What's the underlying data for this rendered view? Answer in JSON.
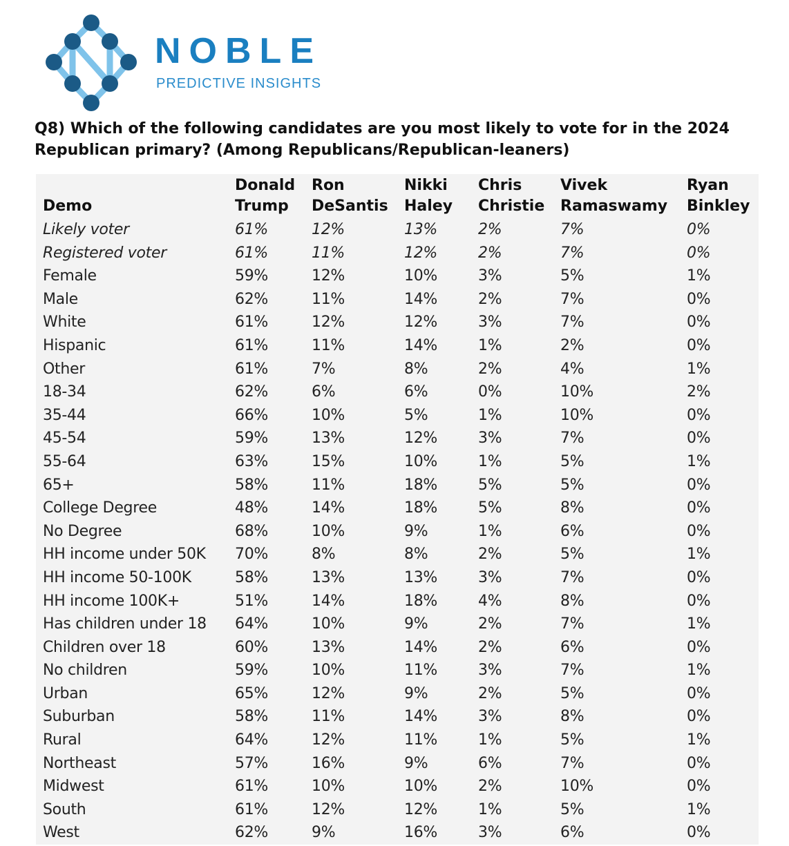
{
  "logo": {
    "brand": "NOBLE",
    "tagline": "PREDICTIVE INSIGHTS",
    "colors": {
      "node": "#1b5a86",
      "accent": "#1a7fc0",
      "line": "#7fc3ea"
    }
  },
  "question": "Q8) Which of the following candidates are you most likely to vote for in the 2024 Republican primary? (Among Republicans/Republican-leaners)",
  "table": {
    "headers": [
      {
        "line1": "",
        "line2": "Demo"
      },
      {
        "line1": "Donald",
        "line2": "Trump"
      },
      {
        "line1": "Ron",
        "line2": "DeSantis"
      },
      {
        "line1": "Nikki",
        "line2": "Haley"
      },
      {
        "line1": "Chris",
        "line2": "Christie"
      },
      {
        "line1": "Vivek",
        "line2": "Ramaswamy"
      },
      {
        "line1": "Ryan",
        "line2": "Binkley"
      }
    ],
    "rows": [
      {
        "italic": true,
        "cells": [
          "Likely voter",
          "61%",
          "12%",
          "13%",
          "2%",
          "7%",
          "0%"
        ]
      },
      {
        "italic": true,
        "cells": [
          "Registered voter",
          "61%",
          "11%",
          "12%",
          "2%",
          "7%",
          "0%"
        ]
      },
      {
        "italic": false,
        "cells": [
          "Female",
          "59%",
          "12%",
          "10%",
          "3%",
          "5%",
          "1%"
        ]
      },
      {
        "italic": false,
        "cells": [
          "Male",
          "62%",
          "11%",
          "14%",
          "2%",
          "7%",
          "0%"
        ]
      },
      {
        "italic": false,
        "cells": [
          "White",
          "61%",
          "12%",
          "12%",
          "3%",
          "7%",
          "0%"
        ]
      },
      {
        "italic": false,
        "cells": [
          "Hispanic",
          "61%",
          "11%",
          "14%",
          "1%",
          "2%",
          "0%"
        ]
      },
      {
        "italic": false,
        "cells": [
          "Other",
          "61%",
          "7%",
          "8%",
          "2%",
          "4%",
          "1%"
        ]
      },
      {
        "italic": false,
        "cells": [
          "18-34",
          "62%",
          "6%",
          "6%",
          "0%",
          "10%",
          "2%"
        ]
      },
      {
        "italic": false,
        "cells": [
          "35-44",
          "66%",
          "10%",
          "5%",
          "1%",
          "10%",
          "0%"
        ]
      },
      {
        "italic": false,
        "cells": [
          "45-54",
          "59%",
          "13%",
          "12%",
          "3%",
          "7%",
          "0%"
        ]
      },
      {
        "italic": false,
        "cells": [
          "55-64",
          "63%",
          "15%",
          "10%",
          "1%",
          "5%",
          "1%"
        ]
      },
      {
        "italic": false,
        "cells": [
          "65+",
          "58%",
          "11%",
          "18%",
          "5%",
          "5%",
          "0%"
        ]
      },
      {
        "italic": false,
        "cells": [
          "College Degree",
          "48%",
          "14%",
          "18%",
          "5%",
          "8%",
          "0%"
        ]
      },
      {
        "italic": false,
        "cells": [
          "No Degree",
          "68%",
          "10%",
          "9%",
          "1%",
          "6%",
          "0%"
        ]
      },
      {
        "italic": false,
        "cells": [
          "HH income under 50K",
          "70%",
          "8%",
          "8%",
          "2%",
          "5%",
          "1%"
        ]
      },
      {
        "italic": false,
        "cells": [
          "HH income 50-100K",
          "58%",
          "13%",
          "13%",
          "3%",
          "7%",
          "0%"
        ]
      },
      {
        "italic": false,
        "cells": [
          "HH income 100K+",
          "51%",
          "14%",
          "18%",
          "4%",
          "8%",
          "0%"
        ]
      },
      {
        "italic": false,
        "cells": [
          "Has children under 18",
          "64%",
          "10%",
          "9%",
          "2%",
          "7%",
          "1%"
        ]
      },
      {
        "italic": false,
        "cells": [
          "Children over 18",
          "60%",
          "13%",
          "14%",
          "2%",
          "6%",
          "0%"
        ]
      },
      {
        "italic": false,
        "cells": [
          "No children",
          "59%",
          "10%",
          "11%",
          "3%",
          "7%",
          "1%"
        ]
      },
      {
        "italic": false,
        "cells": [
          "Urban",
          "65%",
          "12%",
          "9%",
          "2%",
          "5%",
          "0%"
        ]
      },
      {
        "italic": false,
        "cells": [
          "Suburban",
          "58%",
          "11%",
          "14%",
          "3%",
          "8%",
          "0%"
        ]
      },
      {
        "italic": false,
        "cells": [
          "Rural",
          "64%",
          "12%",
          "11%",
          "1%",
          "5%",
          "1%"
        ]
      },
      {
        "italic": false,
        "cells": [
          "Northeast",
          "57%",
          "16%",
          "9%",
          "6%",
          "7%",
          "0%"
        ]
      },
      {
        "italic": false,
        "cells": [
          "Midwest",
          "61%",
          "10%",
          "10%",
          "2%",
          "10%",
          "0%"
        ]
      },
      {
        "italic": false,
        "cells": [
          "South",
          "61%",
          "12%",
          "12%",
          "1%",
          "5%",
          "1%"
        ]
      },
      {
        "italic": false,
        "cells": [
          "West",
          "62%",
          "9%",
          "16%",
          "3%",
          "6%",
          "0%"
        ]
      }
    ]
  }
}
